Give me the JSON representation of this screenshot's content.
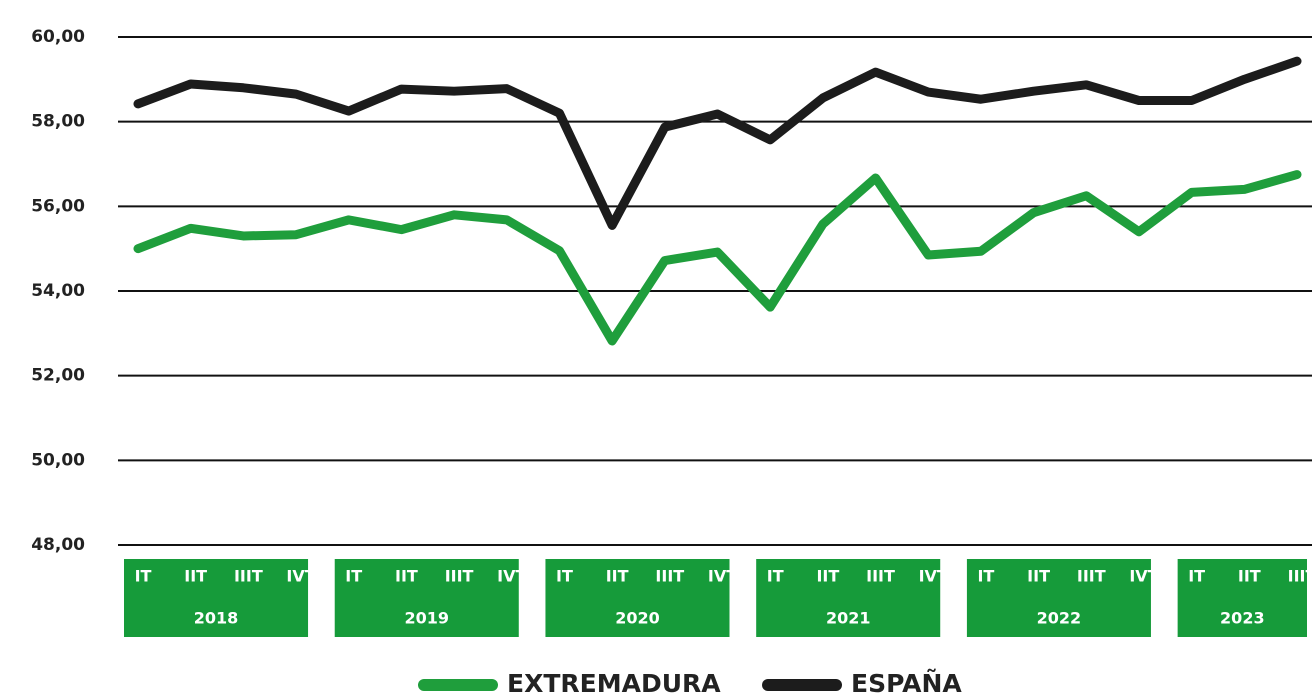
{
  "chart_data": {
    "type": "line",
    "groups": [
      {
        "label": "2018",
        "categories": [
          "IT",
          "IIT",
          "IIIT",
          "IVT"
        ]
      },
      {
        "label": "2019",
        "categories": [
          "IT",
          "IIT",
          "IIIT",
          "IVT"
        ]
      },
      {
        "label": "2020",
        "categories": [
          "IT",
          "IIT",
          "IIIT",
          "IVT"
        ]
      },
      {
        "label": "2021",
        "categories": [
          "IT",
          "IIT",
          "IIIT",
          "IVT"
        ]
      },
      {
        "label": "2022",
        "categories": [
          "IT",
          "IIT",
          "IIIT",
          "IVT"
        ]
      },
      {
        "label": "2023",
        "categories": [
          "IT",
          "IIT",
          "IIIT"
        ]
      }
    ],
    "group_color": "#169b3a",
    "series": [
      {
        "name": "EXTREMADURA",
        "color": "#1f9e3c",
        "values": [
          55.0,
          55.48,
          55.3,
          55.33,
          55.68,
          55.45,
          55.8,
          55.68,
          54.95,
          52.82,
          54.72,
          54.92,
          53.62,
          55.58,
          56.67,
          54.85,
          54.94,
          55.85,
          56.25,
          55.4,
          56.33,
          56.4,
          56.75
        ]
      },
      {
        "name": "ESPAÑA",
        "color": "#1c1c1c",
        "values": [
          58.42,
          58.89,
          58.8,
          58.65,
          58.25,
          58.77,
          58.72,
          58.78,
          58.2,
          55.55,
          57.87,
          58.18,
          57.57,
          58.56,
          59.17,
          58.7,
          58.53,
          58.72,
          58.87,
          58.5,
          58.5,
          59.0,
          59.43
        ]
      }
    ],
    "ylim": [
      48,
      60
    ],
    "yticks": [
      {
        "value": 48,
        "label": "48,00"
      },
      {
        "value": 50,
        "label": "50,00"
      },
      {
        "value": 52,
        "label": "52,00"
      },
      {
        "value": 54,
        "label": "54,00"
      },
      {
        "value": 56,
        "label": "56,00"
      },
      {
        "value": 58,
        "label": "58,00"
      },
      {
        "value": 60,
        "label": "60,00"
      }
    ],
    "grid": true,
    "legend": "bottom"
  }
}
